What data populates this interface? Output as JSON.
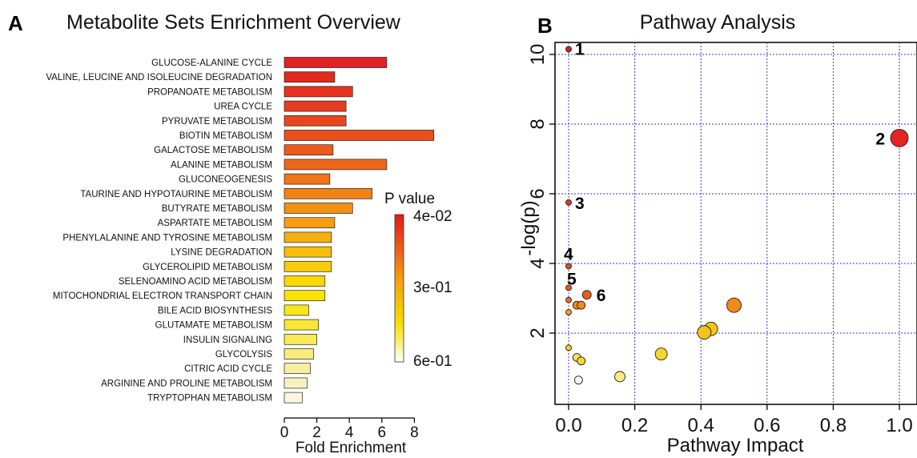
{
  "panel_a": {
    "letter": "A",
    "title": "Metabolite Sets Enrichment Overview",
    "xlabel": "Fold Enrichment",
    "legend": {
      "title": "P value",
      "labels": [
        "4e-02",
        "3e-01",
        "6e-01"
      ],
      "colors": [
        "#e01a1a",
        "#f5a010",
        "#f8e000",
        "#ffffff"
      ]
    }
  },
  "panel_b": {
    "letter": "B",
    "title": "Pathway Analysis",
    "xlabel": "Pathway Impact",
    "ylabel": "-log(p)"
  },
  "chart_data": [
    {
      "type": "bar",
      "orientation": "horizontal",
      "title": "Metabolite Sets Enrichment Overview",
      "xlabel": "Fold Enrichment",
      "ylabel": "",
      "xlim": [
        0,
        9.2
      ],
      "xticks": [
        0,
        2,
        4,
        6,
        8
      ],
      "legend": {
        "title": "P value",
        "position": "right",
        "labels": [
          "4e-02",
          "3e-01",
          "6e-01"
        ]
      },
      "categories": [
        "GLUCOSE-ALANINE CYCLE",
        "VALINE, LEUCINE AND ISOLEUCINE DEGRADATION",
        "PROPANOATE METABOLISM",
        "UREA CYCLE",
        "PYRUVATE METABOLISM",
        "BIOTIN METABOLISM",
        "GALACTOSE METABOLISM",
        "ALANINE METABOLISM",
        "GLUCONEOGENESIS",
        "TAURINE AND HYPOTAURINE METABOLISM",
        "BUTYRATE METABOLISM",
        "ASPARTATE METABOLISM",
        "PHENYLALANINE AND TYROSINE METABOLISM",
        "LYSINE DEGRADATION",
        "GLYCEROLIPID METABOLISM",
        "SELENOAMINO ACID METABOLISM",
        "MITOCHONDRIAL ELECTRON TRANSPORT CHAIN",
        "BILE ACID BIOSYNTHESIS",
        "GLUTAMATE METABOLISM",
        "INSULIN SIGNALING",
        "GLYCOLYSIS",
        "CITRIC ACID CYCLE",
        "ARGININE AND PROLINE METABOLISM",
        "TRYPTOPHAN METABOLISM"
      ],
      "values": [
        6.3,
        3.1,
        4.2,
        3.8,
        3.8,
        9.2,
        3.0,
        6.3,
        2.8,
        5.4,
        4.2,
        3.1,
        2.9,
        2.9,
        2.9,
        2.5,
        2.5,
        1.5,
        2.1,
        2.0,
        1.8,
        1.6,
        1.4,
        1.1
      ],
      "colors": [
        "#e42222",
        "#e22a1e",
        "#e53320",
        "#e63c1e",
        "#e8461e",
        "#ea4f1c",
        "#ec5a1c",
        "#ee661a",
        "#f07418",
        "#f28216",
        "#f39014",
        "#f59e12",
        "#f6ae10",
        "#f8be0c",
        "#f9cc08",
        "#fad804",
        "#fbe200",
        "#f9e616",
        "#f8e834",
        "#f8ea58",
        "#f8ec7c",
        "#f8eea0",
        "#f9f1c0",
        "#fbf6e0"
      ]
    },
    {
      "type": "scatter",
      "title": "Pathway Analysis",
      "xlabel": "Pathway Impact",
      "ylabel": "-log(p)",
      "xlim": [
        0,
        1.0
      ],
      "ylim": [
        0,
        10.5
      ],
      "xticks": [
        0.0,
        0.2,
        0.4,
        0.6,
        0.8,
        1.0
      ],
      "yticks": [
        2,
        4,
        6,
        8,
        10
      ],
      "grid": true,
      "points": [
        {
          "label": "1",
          "x": 0.0,
          "y": 10.15,
          "color": "#d62020"
        },
        {
          "label": "2",
          "x": 1.0,
          "y": 7.6,
          "color": "#e52424"
        },
        {
          "label": "3",
          "x": 0.0,
          "y": 5.75,
          "color": "#e03a1e"
        },
        {
          "label": "4",
          "x": 0.0,
          "y": 3.92,
          "color": "#e34a1e"
        },
        {
          "label": "5",
          "x": 0.0,
          "y": 3.3,
          "color": "#e8581c"
        },
        {
          "label": "6",
          "x": 0.055,
          "y": 3.1,
          "color": "#ea5c1e"
        },
        {
          "label": "",
          "x": 0.0,
          "y": 2.95,
          "color": "#ee6e1c"
        },
        {
          "label": "",
          "x": 0.025,
          "y": 2.8,
          "color": "#f08a1a"
        },
        {
          "label": "",
          "x": 0.038,
          "y": 2.8,
          "color": "#f08a1a"
        },
        {
          "label": "",
          "x": 0.0,
          "y": 2.6,
          "color": "#f5a514"
        },
        {
          "label": "",
          "x": 0.5,
          "y": 2.8,
          "color": "#f08a1a"
        },
        {
          "label": "",
          "x": 0.43,
          "y": 2.12,
          "color": "#f6c418"
        },
        {
          "label": "",
          "x": 0.41,
          "y": 2.02,
          "color": "#f6c418"
        },
        {
          "label": "",
          "x": 0.0,
          "y": 1.58,
          "color": "#f6d21a"
        },
        {
          "label": "",
          "x": 0.025,
          "y": 1.3,
          "color": "#f8e060"
        },
        {
          "label": "",
          "x": 0.038,
          "y": 1.2,
          "color": "#f8d830"
        },
        {
          "label": "",
          "x": 0.28,
          "y": 1.4,
          "color": "#f6d62a"
        },
        {
          "label": "",
          "x": 0.155,
          "y": 0.75,
          "color": "#f8eb80"
        },
        {
          "label": "",
          "x": 0.03,
          "y": 0.65,
          "color": "#fbf7ea"
        }
      ]
    }
  ]
}
